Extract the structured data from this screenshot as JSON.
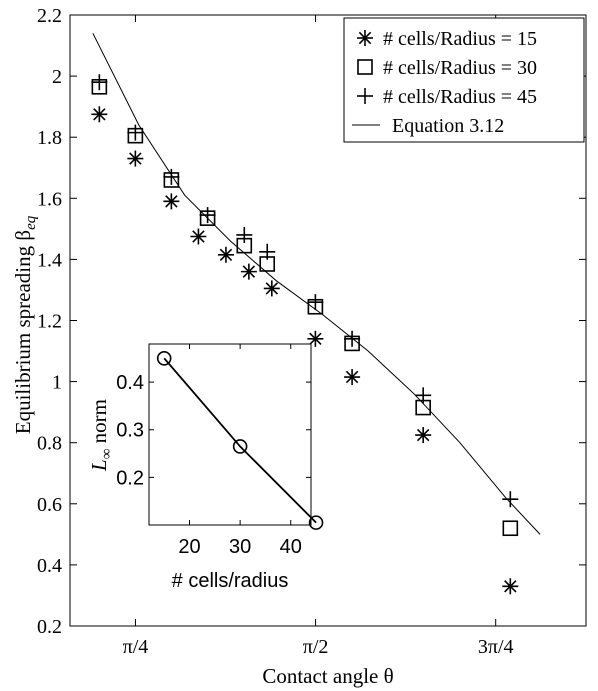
{
  "chart_data": [
    {
      "id": "main",
      "type": "scatter",
      "xlabel": "Contact angle θ",
      "ylabel": "Equilibrium spreading β",
      "ylabel_sub": "eq",
      "xlim": [
        0.5,
        2.75
      ],
      "ylim": [
        0.2,
        2.2
      ],
      "xticks": [
        {
          "value": 0.7854,
          "label": "π/4"
        },
        {
          "value": 1.5708,
          "label": "π/2"
        },
        {
          "value": 2.3562,
          "label": "3π/4"
        }
      ],
      "yticks": [
        0.2,
        0.4,
        0.6,
        0.8,
        1,
        1.2,
        1.4,
        1.6,
        1.8,
        2,
        2.2
      ],
      "ytick_labels": [
        "0.2",
        "0.4",
        "0.6",
        "0.8",
        "1",
        "1.2",
        "1.4",
        "1.6",
        "1.8",
        "2",
        "2.2"
      ],
      "grid": false,
      "legend_position": "top-right",
      "series": [
        {
          "name": "# cells/Radius = 15",
          "marker": "asterisk",
          "x": [
            0.628,
            0.785,
            0.942,
            1.06,
            1.18,
            1.28,
            1.38,
            1.57,
            1.73,
            2.04,
            2.42
          ],
          "y": [
            1.875,
            1.73,
            1.59,
            1.475,
            1.415,
            1.36,
            1.305,
            1.14,
            1.015,
            0.825,
            0.33
          ]
        },
        {
          "name": "# cells/Radius = 30",
          "marker": "square",
          "x": [
            0.628,
            0.785,
            0.942,
            1.1,
            1.26,
            1.36,
            1.57,
            1.73,
            2.04,
            2.42
          ],
          "y": [
            1.965,
            1.805,
            1.66,
            1.535,
            1.445,
            1.385,
            1.245,
            1.125,
            0.915,
            0.52
          ]
        },
        {
          "name": "# cells/Radius = 45",
          "marker": "plus",
          "x": [
            0.628,
            0.785,
            0.942,
            1.1,
            1.26,
            1.36,
            1.57,
            1.73,
            2.04,
            2.42
          ],
          "y": [
            1.98,
            1.815,
            1.67,
            1.545,
            1.48,
            1.425,
            1.26,
            1.14,
            0.955,
            0.615
          ]
        },
        {
          "name": "Equation 3.12",
          "marker": "line",
          "x": [
            0.6,
            0.8,
            1.0,
            1.2,
            1.4,
            1.6,
            1.8,
            2.0,
            2.2,
            2.4,
            2.55
          ],
          "y": [
            2.14,
            1.84,
            1.61,
            1.46,
            1.33,
            1.22,
            1.1,
            0.96,
            0.8,
            0.62,
            0.5
          ]
        }
      ]
    },
    {
      "id": "inset",
      "type": "line",
      "xlabel": "# cells/radius",
      "ylabel": "L",
      "ylabel_sub": "∞",
      "ylabel_rest": " norm",
      "xlim": [
        12,
        44
      ],
      "ylim": [
        0.1,
        0.48
      ],
      "xticks": [
        20,
        30,
        40
      ],
      "xtick_labels": [
        "20",
        "30",
        "40"
      ],
      "yticks": [
        0.2,
        0.3,
        0.4
      ],
      "ytick_labels": [
        "0.2",
        "0.3",
        "0.4"
      ],
      "grid": false,
      "series": [
        {
          "marker": "circle",
          "x": [
            15,
            30,
            45
          ],
          "y": [
            0.45,
            0.265,
            0.105
          ]
        }
      ]
    }
  ]
}
